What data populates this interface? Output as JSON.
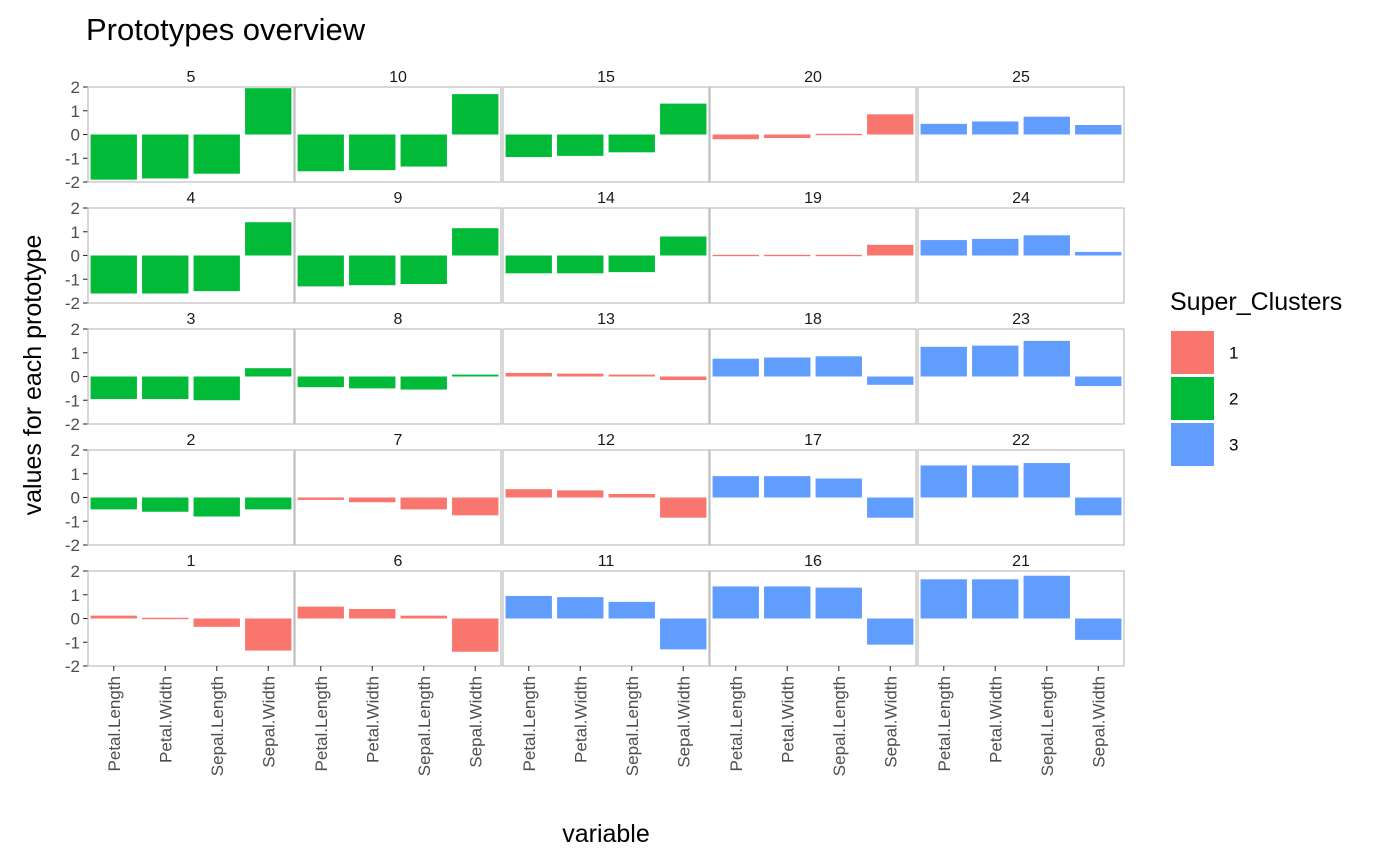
{
  "chart_data": {
    "type": "bar",
    "title": "Prototypes overview",
    "xlabel": "variable",
    "ylabel": "values for each prototype",
    "categories": [
      "Petal.Length",
      "Petal.Width",
      "Sepal.Length",
      "Sepal.Width"
    ],
    "ylim": [
      -2,
      2
    ],
    "yticks": [
      2,
      1,
      0,
      -1,
      -2
    ],
    "grid": false,
    "legend": {
      "title": "Super_Clusters",
      "placement": "right",
      "items": [
        {
          "label": "1",
          "color": "#F8766D"
        },
        {
          "label": "2",
          "color": "#00BA38"
        },
        {
          "label": "3",
          "color": "#619CFF"
        }
      ]
    },
    "facet_rows": [
      [
        {
          "label": "5",
          "cluster": "2",
          "values": [
            -1.9,
            -1.85,
            -1.65,
            1.95
          ]
        },
        {
          "label": "10",
          "cluster": "2",
          "values": [
            -1.55,
            -1.5,
            -1.35,
            1.7
          ]
        },
        {
          "label": "15",
          "cluster": "2",
          "values": [
            -0.95,
            -0.9,
            -0.75,
            1.3
          ]
        },
        {
          "label": "20",
          "cluster": "1",
          "values": [
            -0.2,
            -0.15,
            0.0,
            0.85
          ]
        },
        {
          "label": "25",
          "cluster": "3",
          "values": [
            0.45,
            0.55,
            0.75,
            0.4
          ]
        }
      ],
      [
        {
          "label": "4",
          "cluster": "2",
          "values": [
            -1.6,
            -1.6,
            -1.5,
            1.4
          ]
        },
        {
          "label": "9",
          "cluster": "2",
          "values": [
            -1.3,
            -1.25,
            -1.2,
            1.15
          ]
        },
        {
          "label": "14",
          "cluster": "2",
          "values": [
            -0.75,
            -0.75,
            -0.7,
            0.8
          ]
        },
        {
          "label": "19",
          "cluster": "1",
          "values": [
            -0.05,
            -0.05,
            0.05,
            0.45
          ]
        },
        {
          "label": "24",
          "cluster": "3",
          "values": [
            0.65,
            0.7,
            0.85,
            0.15
          ]
        }
      ],
      [
        {
          "label": "3",
          "cluster": "2",
          "values": [
            -0.95,
            -0.95,
            -1.0,
            0.35
          ]
        },
        {
          "label": "8",
          "cluster": "2",
          "values": [
            -0.45,
            -0.5,
            -0.55,
            0.08
          ]
        },
        {
          "label": "13",
          "cluster": "1",
          "values": [
            0.15,
            0.12,
            0.08,
            -0.15
          ]
        },
        {
          "label": "18",
          "cluster": "3",
          "values": [
            0.75,
            0.8,
            0.85,
            -0.35
          ]
        },
        {
          "label": "23",
          "cluster": "3",
          "values": [
            1.25,
            1.3,
            1.5,
            -0.4
          ]
        }
      ],
      [
        {
          "label": "2",
          "cluster": "2",
          "values": [
            -0.5,
            -0.6,
            -0.8,
            -0.5
          ]
        },
        {
          "label": "7",
          "cluster": "1",
          "values": [
            -0.1,
            -0.2,
            -0.5,
            -0.75
          ]
        },
        {
          "label": "12",
          "cluster": "1",
          "values": [
            0.35,
            0.3,
            0.15,
            -0.85
          ]
        },
        {
          "label": "17",
          "cluster": "3",
          "values": [
            0.9,
            0.9,
            0.8,
            -0.85
          ]
        },
        {
          "label": "22",
          "cluster": "3",
          "values": [
            1.35,
            1.35,
            1.45,
            -0.75
          ]
        }
      ],
      [
        {
          "label": "1",
          "cluster": "1",
          "values": [
            0.12,
            0.0,
            -0.35,
            -1.35
          ]
        },
        {
          "label": "6",
          "cluster": "1",
          "values": [
            0.5,
            0.4,
            0.12,
            -1.4
          ]
        },
        {
          "label": "11",
          "cluster": "3",
          "values": [
            0.95,
            0.9,
            0.7,
            -1.3
          ]
        },
        {
          "label": "16",
          "cluster": "3",
          "values": [
            1.35,
            1.35,
            1.3,
            -1.1
          ]
        },
        {
          "label": "21",
          "cluster": "3",
          "values": [
            1.65,
            1.65,
            1.8,
            -0.9
          ]
        }
      ]
    ]
  }
}
